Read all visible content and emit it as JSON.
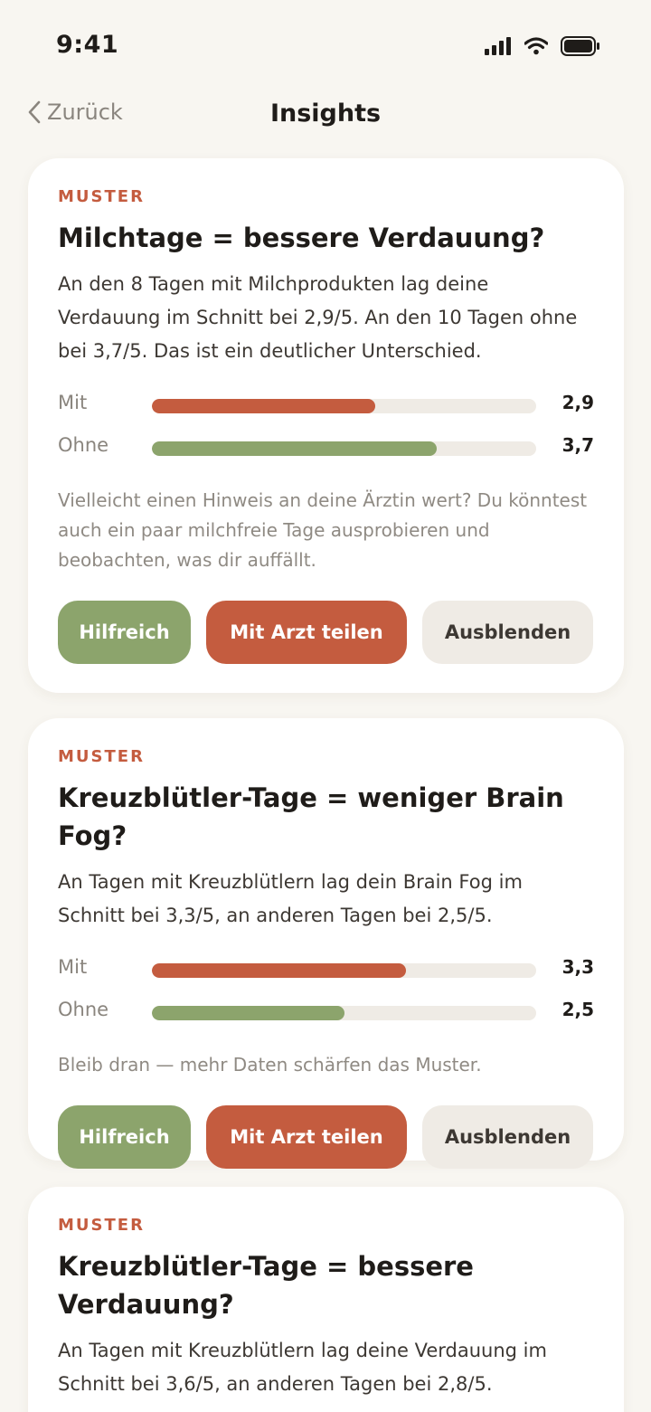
{
  "status_bar": {
    "time": "9:41"
  },
  "nav": {
    "back_label": "Zurück",
    "title": "Insights"
  },
  "cards": [
    {
      "tag": "MUSTER",
      "title": "Milchtage = bessere Verdauung?",
      "description": "An den 8 Tagen mit Milchprodukten lag deine Verdauung im Schnitt bei 2,9/5. An den 10 Tagen ohne bei 3,7/5. Das ist ein deutlicher Unterschied.",
      "bars": [
        {
          "label": "Mit",
          "value": 2.9,
          "value_label": "2,9",
          "max": 5
        },
        {
          "label": "Ohne",
          "value": 3.7,
          "value_label": "3,7",
          "max": 5
        }
      ],
      "hint": "Vielleicht einen Hinweis an deine Ärztin wert? Du könntest auch ein paar milchfreie Tage ausprobieren und beobachten, was dir auffällt.",
      "buttons": {
        "helpful": "Hilfreich",
        "share": "Mit Arzt teilen",
        "hide": "Ausblenden"
      }
    },
    {
      "tag": "MUSTER",
      "title": "Kreuzblütler-Tage = weniger Brain Fog?",
      "description": "An Tagen mit Kreuzblütlern lag dein Brain Fog im Schnitt bei 3,3/5, an anderen Tagen bei 2,5/5.",
      "bars": [
        {
          "label": "Mit",
          "value": 3.3,
          "value_label": "3,3",
          "max": 5
        },
        {
          "label": "Ohne",
          "value": 2.5,
          "value_label": "2,5",
          "max": 5
        }
      ],
      "hint": "Bleib dran — mehr Daten schärfen das Muster.",
      "buttons": {
        "helpful": "Hilfreich",
        "share": "Mit Arzt teilen",
        "hide": "Ausblenden"
      }
    },
    {
      "tag": "MUSTER",
      "title": "Kreuzblütler-Tage = bessere Verdauung?",
      "description": "An Tagen mit Kreuzblütlern lag deine Verdauung im Schnitt bei 3,6/5, an anderen Tagen bei 2,8/5."
    }
  ],
  "colors": {
    "accent_red": "#c45c3f",
    "accent_green": "#8ca46c",
    "background": "#f8f6f1"
  }
}
